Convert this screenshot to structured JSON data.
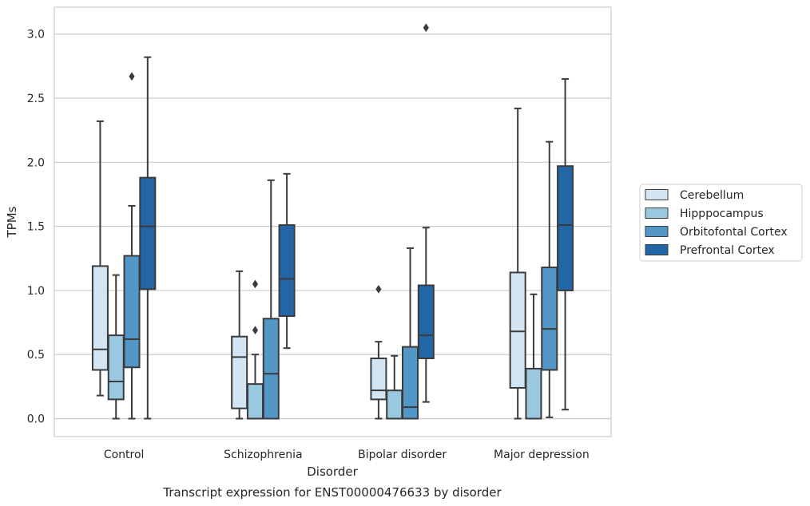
{
  "chart_data": {
    "type": "boxplot",
    "title": "Transcript expression for ENST00000476633 by disorder",
    "xlabel": "Disorder",
    "ylabel": "TPMs",
    "ylim": [
      -0.14,
      3.21
    ],
    "yticks": [
      0.0,
      0.5,
      1.0,
      1.5,
      2.0,
      2.5,
      3.0
    ],
    "ytick_labels": [
      "0.0",
      "0.5",
      "1.0",
      "1.5",
      "2.0",
      "2.5",
      "3.0"
    ],
    "grid": "horizontal",
    "legend_position": "right",
    "categories": [
      "Control",
      "Schizophrenia",
      "Bipolar disorder",
      "Major depression"
    ],
    "series": [
      {
        "name": "Cerebellum",
        "color": "#d3e4f3",
        "boxes": [
          {
            "whislo": 0.18,
            "q1": 0.38,
            "med": 0.54,
            "q3": 1.19,
            "whishi": 2.32,
            "fliers": []
          },
          {
            "whislo": 0.0,
            "q1": 0.08,
            "med": 0.48,
            "q3": 0.64,
            "whishi": 1.15,
            "fliers": []
          },
          {
            "whislo": 0.0,
            "q1": 0.15,
            "med": 0.22,
            "q3": 0.47,
            "whishi": 0.6,
            "fliers": [
              1.01
            ]
          },
          {
            "whislo": 0.0,
            "q1": 0.24,
            "med": 0.68,
            "q3": 1.14,
            "whishi": 2.42,
            "fliers": []
          }
        ]
      },
      {
        "name": "Hipppocampus",
        "color": "#9ac8e0",
        "boxes": [
          {
            "whislo": 0.0,
            "q1": 0.15,
            "med": 0.29,
            "q3": 0.65,
            "whishi": 1.12,
            "fliers": []
          },
          {
            "whislo": 0.0,
            "q1": 0.0,
            "med": 0.0,
            "q3": 0.27,
            "whishi": 0.5,
            "fliers": [
              0.69,
              1.05
            ]
          },
          {
            "whislo": 0.0,
            "q1": 0.0,
            "med": 0.0,
            "q3": 0.22,
            "whishi": 0.49,
            "fliers": []
          },
          {
            "whislo": 0.0,
            "q1": 0.0,
            "med": 0.0,
            "q3": 0.39,
            "whishi": 0.97,
            "fliers": []
          }
        ]
      },
      {
        "name": "Orbitofontal Cortex",
        "color": "#5297c6",
        "boxes": [
          {
            "whislo": 0.0,
            "q1": 0.4,
            "med": 0.62,
            "q3": 1.27,
            "whishi": 1.66,
            "fliers": [
              2.67
            ]
          },
          {
            "whislo": 0.0,
            "q1": 0.0,
            "med": 0.35,
            "q3": 0.78,
            "whishi": 1.86,
            "fliers": []
          },
          {
            "whislo": 0.0,
            "q1": 0.0,
            "med": 0.09,
            "q3": 0.56,
            "whishi": 1.33,
            "fliers": []
          },
          {
            "whislo": 0.01,
            "q1": 0.38,
            "med": 0.7,
            "q3": 1.18,
            "whishi": 2.16,
            "fliers": []
          }
        ]
      },
      {
        "name": "Prefrontal Cortex",
        "color": "#2366a8",
        "boxes": [
          {
            "whislo": 0.0,
            "q1": 1.01,
            "med": 1.5,
            "q3": 1.88,
            "whishi": 2.82,
            "fliers": []
          },
          {
            "whislo": 0.55,
            "q1": 0.8,
            "med": 1.09,
            "q3": 1.51,
            "whishi": 1.91,
            "fliers": []
          },
          {
            "whislo": 0.13,
            "q1": 0.47,
            "med": 0.65,
            "q3": 1.04,
            "whishi": 1.49,
            "fliers": [
              3.05
            ]
          },
          {
            "whislo": 0.07,
            "q1": 1.0,
            "med": 1.51,
            "q3": 1.97,
            "whishi": 2.65,
            "fliers": []
          }
        ]
      }
    ]
  }
}
